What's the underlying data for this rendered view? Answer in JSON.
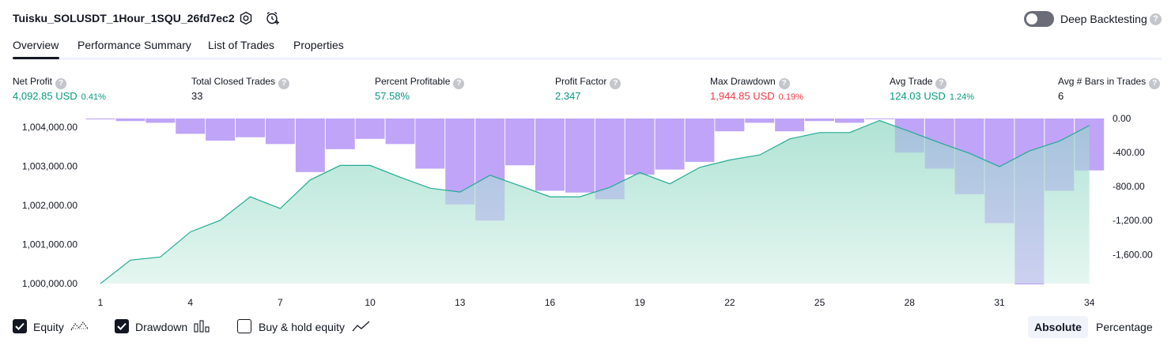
{
  "header": {
    "title": "Tuisku_SOLUSDT_1Hour_1SQU_26fd7ec2",
    "deep_backtesting_label": "Deep Backtesting",
    "deep_backtesting_enabled": false,
    "help_glyph": "?"
  },
  "tabs": [
    {
      "label": "Overview",
      "active": true
    },
    {
      "label": "Performance Summary",
      "active": false
    },
    {
      "label": "List of Trades",
      "active": false
    },
    {
      "label": "Properties",
      "active": false
    }
  ],
  "metrics": [
    {
      "label": "Net Profit",
      "value": "4,092.85 USD",
      "pct": "0.41%",
      "color": "#089981"
    },
    {
      "label": "Total Closed Trades",
      "value": "33",
      "pct": "",
      "color": "#131722"
    },
    {
      "label": "Percent Profitable",
      "value": "57.58%",
      "pct": "",
      "color": "#089981"
    },
    {
      "label": "Profit Factor",
      "value": "2.347",
      "pct": "",
      "color": "#089981"
    },
    {
      "label": "Max Drawdown",
      "value": "1,944.85 USD",
      "pct": "0.19%",
      "color": "#f23645"
    },
    {
      "label": "Avg Trade",
      "value": "124.03 USD",
      "pct": "1.24%",
      "color": "#089981"
    },
    {
      "label": "Avg # Bars in Trades",
      "value": "6",
      "pct": "",
      "color": "#131722"
    }
  ],
  "chart_data": {
    "type": "area",
    "x_ticks": [
      1,
      4,
      7,
      10,
      13,
      16,
      19,
      22,
      25,
      28,
      31,
      34
    ],
    "left_axis": {
      "ticks": [
        "1,004,000.00",
        "1,003,000.00",
        "1,002,000.00",
        "1,001,000.00",
        "1,000,000.00"
      ],
      "tick_values": [
        1004000,
        1003000,
        1002000,
        1001000,
        1000000
      ],
      "range": [
        1000000,
        1004200
      ]
    },
    "right_axis": {
      "ticks": [
        "0.00",
        "-400.00",
        "-800.00",
        "-1,200.00",
        "-1,600.00"
      ],
      "tick_values": [
        0,
        -400,
        -800,
        -1200,
        -1600
      ],
      "range": [
        -1950,
        0
      ]
    },
    "series": [
      {
        "name": "Equity",
        "type": "area",
        "color": "#22ab94",
        "x": [
          1,
          2,
          3,
          4,
          5,
          6,
          7,
          8,
          9,
          10,
          11,
          12,
          13,
          14,
          15,
          16,
          17,
          18,
          19,
          20,
          21,
          22,
          23,
          24,
          25,
          26,
          27,
          28,
          29,
          30,
          31,
          32,
          33,
          34
        ],
        "values": [
          1000000,
          1000600,
          1000680,
          1001320,
          1001620,
          1002220,
          1001920,
          1002650,
          1003020,
          1003020,
          1002720,
          1002440,
          1002340,
          1002770,
          1002500,
          1002220,
          1002220,
          1002460,
          1002840,
          1002550,
          1002970,
          1003160,
          1003290,
          1003700,
          1003860,
          1003860,
          1004170,
          1003890,
          1003600,
          1003330,
          1002990,
          1003390,
          1003640,
          1004040
        ]
      },
      {
        "name": "Drawdown",
        "type": "bar",
        "color": "#cdb0fa",
        "x": [
          1,
          2,
          3,
          4,
          5,
          6,
          7,
          8,
          9,
          10,
          11,
          12,
          13,
          14,
          15,
          16,
          17,
          18,
          19,
          20,
          21,
          22,
          23,
          24,
          25,
          26,
          27,
          28,
          29,
          30,
          31,
          32,
          33,
          34
        ],
        "values": [
          -10,
          -30,
          -50,
          -180,
          -260,
          -220,
          -300,
          -630,
          -360,
          -240,
          -300,
          -590,
          -1010,
          -1200,
          -550,
          -850,
          -870,
          -950,
          -660,
          -600,
          -510,
          -150,
          -50,
          -150,
          -30,
          -50,
          0,
          -400,
          -590,
          -890,
          -1230,
          -1950,
          -850,
          -610
        ]
      }
    ],
    "legend": [
      "Equity",
      "Drawdown",
      "Buy & hold equity"
    ],
    "grid": false
  },
  "legend": {
    "equity_label": "Equity",
    "equity_checked": true,
    "drawdown_label": "Drawdown",
    "drawdown_checked": true,
    "buyhold_label": "Buy & hold equity",
    "buyhold_checked": false
  },
  "view_mode": {
    "absolute_label": "Absolute",
    "percentage_label": "Percentage",
    "active": "Absolute"
  }
}
